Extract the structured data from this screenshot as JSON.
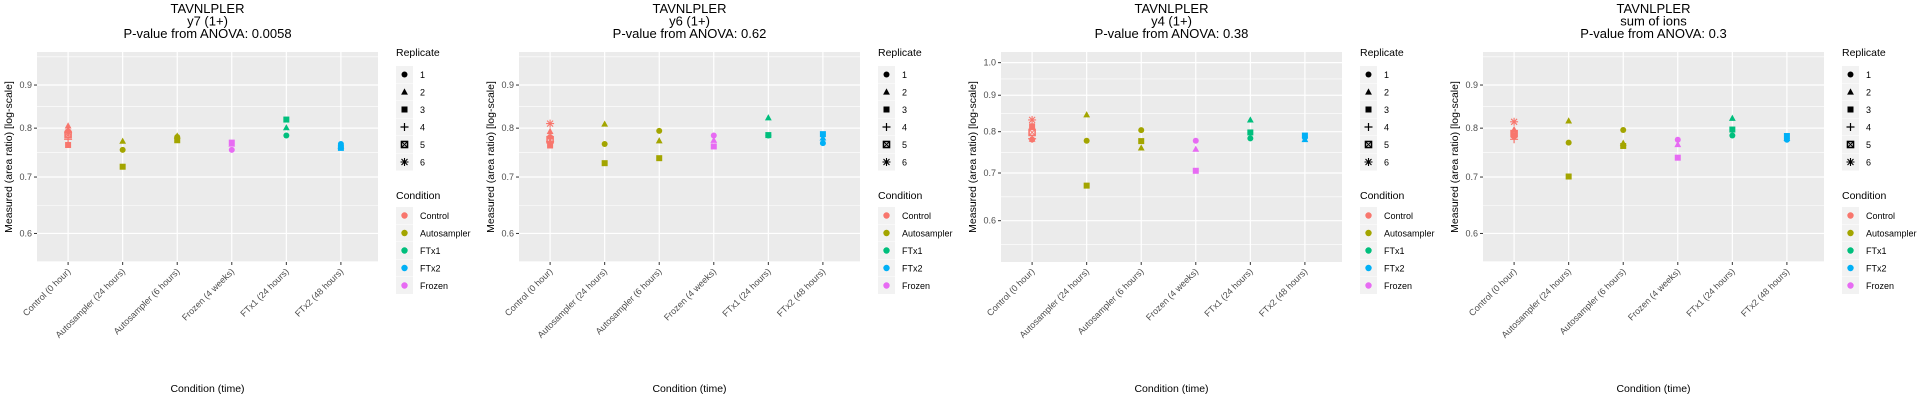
{
  "colors": {
    "Control": "#F8766D",
    "Autosampler": "#A3A500",
    "FTx1": "#00BF7D",
    "FTx2": "#00B0F6",
    "Frozen": "#E76BF3",
    "panel_bg": "#EBEBEB",
    "grid": "#FFFFFF"
  },
  "chart_data": [
    {
      "type": "scatter",
      "title": [
        "TAVNLPLER",
        "y7 (1+)",
        "P-value from ANOVA: 0.0058"
      ],
      "xlabel": "Condition (time)",
      "ylabel": "Measured (area ratio) [log-scale]",
      "yscale": "log",
      "ylim": [
        0.555,
        0.985
      ],
      "yticks": [
        0.6,
        0.7,
        0.8,
        0.9
      ],
      "grid": true,
      "categories": [
        "Control (0 hour)",
        "Autosampler (24 hours)",
        "Autosampler (6 hours)",
        "Frozen (4 weeks)",
        "FTx1 (24 hours)",
        "FTx2 (48 hours)"
      ],
      "points": [
        {
          "cat": 0,
          "cond": "Control",
          "rep": 2,
          "y": 0.805
        },
        {
          "cat": 0,
          "cond": "Control",
          "rep": 1,
          "y": 0.793
        },
        {
          "cat": 0,
          "cond": "Control",
          "rep": 6,
          "y": 0.79
        },
        {
          "cat": 0,
          "cond": "Control",
          "rep": 5,
          "y": 0.786
        },
        {
          "cat": 0,
          "cond": "Control",
          "rep": 4,
          "y": 0.776
        },
        {
          "cat": 0,
          "cond": "Control",
          "rep": 3,
          "y": 0.764
        },
        {
          "cat": 1,
          "cond": "Autosampler",
          "rep": 2,
          "y": 0.772
        },
        {
          "cat": 1,
          "cond": "Autosampler",
          "rep": 1,
          "y": 0.754
        },
        {
          "cat": 1,
          "cond": "Autosampler",
          "rep": 3,
          "y": 0.72
        },
        {
          "cat": 2,
          "cond": "Autosampler",
          "rep": 2,
          "y": 0.783
        },
        {
          "cat": 2,
          "cond": "Autosampler",
          "rep": 1,
          "y": 0.781
        },
        {
          "cat": 2,
          "cond": "Autosampler",
          "rep": 3,
          "y": 0.774
        },
        {
          "cat": 3,
          "cond": "Frozen",
          "rep": 3,
          "y": 0.769
        },
        {
          "cat": 3,
          "cond": "Frozen",
          "rep": 2,
          "y": 0.766
        },
        {
          "cat": 3,
          "cond": "Frozen",
          "rep": 1,
          "y": 0.754
        },
        {
          "cat": 4,
          "cond": "FTx1",
          "rep": 3,
          "y": 0.819
        },
        {
          "cat": 4,
          "cond": "FTx1",
          "rep": 2,
          "y": 0.801
        },
        {
          "cat": 4,
          "cond": "FTx1",
          "rep": 1,
          "y": 0.784
        },
        {
          "cat": 5,
          "cond": "FTx2",
          "rep": 1,
          "y": 0.766
        },
        {
          "cat": 5,
          "cond": "FTx2",
          "rep": 2,
          "y": 0.762
        },
        {
          "cat": 5,
          "cond": "FTx2",
          "rep": 3,
          "y": 0.758
        }
      ]
    },
    {
      "type": "scatter",
      "title": [
        "TAVNLPLER",
        "y6 (1+)",
        "P-value from ANOVA: 0.62"
      ],
      "xlabel": "Condition (time)",
      "ylabel": "Measured (area ratio) [log-scale]",
      "yscale": "log",
      "ylim": [
        0.555,
        0.985
      ],
      "yticks": [
        0.6,
        0.7,
        0.8,
        0.9
      ],
      "grid": true,
      "categories": [
        "Control (0 hour)",
        "Autosampler (24 hours)",
        "Autosampler (6 hours)",
        "Frozen (4 weeks)",
        "FTx1 (24 hours)",
        "FTx2 (48 hours)"
      ],
      "points": [
        {
          "cat": 0,
          "cond": "Control",
          "rep": 6,
          "y": 0.81
        },
        {
          "cat": 0,
          "cond": "Control",
          "rep": 2,
          "y": 0.793
        },
        {
          "cat": 0,
          "cond": "Control",
          "rep": 1,
          "y": 0.781
        },
        {
          "cat": 0,
          "cond": "Control",
          "rep": 5,
          "y": 0.775
        },
        {
          "cat": 0,
          "cond": "Control",
          "rep": 4,
          "y": 0.771
        },
        {
          "cat": 0,
          "cond": "Control",
          "rep": 3,
          "y": 0.763
        },
        {
          "cat": 1,
          "cond": "Autosampler",
          "rep": 2,
          "y": 0.809
        },
        {
          "cat": 1,
          "cond": "Autosampler",
          "rep": 1,
          "y": 0.766
        },
        {
          "cat": 1,
          "cond": "Autosampler",
          "rep": 3,
          "y": 0.727
        },
        {
          "cat": 2,
          "cond": "Autosampler",
          "rep": 1,
          "y": 0.794
        },
        {
          "cat": 2,
          "cond": "Autosampler",
          "rep": 2,
          "y": 0.773
        },
        {
          "cat": 2,
          "cond": "Autosampler",
          "rep": 3,
          "y": 0.737
        },
        {
          "cat": 3,
          "cond": "Frozen",
          "rep": 1,
          "y": 0.784
        },
        {
          "cat": 3,
          "cond": "Frozen",
          "rep": 2,
          "y": 0.774
        },
        {
          "cat": 3,
          "cond": "Frozen",
          "rep": 3,
          "y": 0.761
        },
        {
          "cat": 4,
          "cond": "FTx1",
          "rep": 2,
          "y": 0.823
        },
        {
          "cat": 4,
          "cond": "FTx1",
          "rep": 1,
          "y": 0.784
        },
        {
          "cat": 4,
          "cond": "FTx1",
          "rep": 3,
          "y": 0.785
        },
        {
          "cat": 5,
          "cond": "FTx2",
          "rep": 3,
          "y": 0.787
        },
        {
          "cat": 5,
          "cond": "FTx2",
          "rep": 2,
          "y": 0.779
        },
        {
          "cat": 5,
          "cond": "FTx2",
          "rep": 1,
          "y": 0.768
        }
      ]
    },
    {
      "type": "scatter",
      "title": [
        "TAVNLPLER",
        "y4 (1+)",
        "P-value from ANOVA: 0.38"
      ],
      "xlabel": "Condition (time)",
      "ylabel": "Measured (area ratio) [log-scale]",
      "yscale": "log",
      "ylim": [
        0.525,
        1.035
      ],
      "yticks": [
        0.6,
        0.7,
        0.8,
        0.9,
        1.0
      ],
      "grid": true,
      "categories": [
        "Control (0 hour)",
        "Autosampler (24 hours)",
        "Autosampler (6 hours)",
        "Frozen (4 weeks)",
        "FTx1 (24 hours)",
        "FTx2 (48 hours)"
      ],
      "points": [
        {
          "cat": 0,
          "cond": "Control",
          "rep": 6,
          "y": 0.831
        },
        {
          "cat": 0,
          "cond": "Control",
          "rep": 3,
          "y": 0.814
        },
        {
          "cat": 0,
          "cond": "Control",
          "rep": 5,
          "y": 0.798
        },
        {
          "cat": 0,
          "cond": "Control",
          "rep": 4,
          "y": 0.782
        },
        {
          "cat": 0,
          "cond": "Control",
          "rep": 1,
          "y": 0.78
        },
        {
          "cat": 0,
          "cond": "Control",
          "rep": 2,
          "y": 0.781
        },
        {
          "cat": 1,
          "cond": "Autosampler",
          "rep": 2,
          "y": 0.845
        },
        {
          "cat": 1,
          "cond": "Autosampler",
          "rep": 1,
          "y": 0.777
        },
        {
          "cat": 1,
          "cond": "Autosampler",
          "rep": 3,
          "y": 0.672
        },
        {
          "cat": 2,
          "cond": "Autosampler",
          "rep": 1,
          "y": 0.804
        },
        {
          "cat": 2,
          "cond": "Autosampler",
          "rep": 3,
          "y": 0.776
        },
        {
          "cat": 2,
          "cond": "Autosampler",
          "rep": 2,
          "y": 0.759
        },
        {
          "cat": 3,
          "cond": "Frozen",
          "rep": 1,
          "y": 0.777
        },
        {
          "cat": 3,
          "cond": "Frozen",
          "rep": 2,
          "y": 0.756
        },
        {
          "cat": 3,
          "cond": "Frozen",
          "rep": 3,
          "y": 0.705
        },
        {
          "cat": 4,
          "cond": "FTx1",
          "rep": 2,
          "y": 0.831
        },
        {
          "cat": 4,
          "cond": "FTx1",
          "rep": 3,
          "y": 0.798
        },
        {
          "cat": 4,
          "cond": "FTx1",
          "rep": 1,
          "y": 0.783
        },
        {
          "cat": 5,
          "cond": "FTx2",
          "rep": 3,
          "y": 0.79
        },
        {
          "cat": 5,
          "cond": "FTx2",
          "rep": 1,
          "y": 0.785
        },
        {
          "cat": 5,
          "cond": "FTx2",
          "rep": 2,
          "y": 0.78
        }
      ]
    },
    {
      "type": "scatter",
      "title": [
        "TAVNLPLER",
        "sum of ions",
        "P-value from ANOVA: 0.3"
      ],
      "xlabel": "Condition (time)",
      "ylabel": "Measured (area ratio) [log-scale]",
      "yscale": "log",
      "ylim": [
        0.555,
        0.985
      ],
      "yticks": [
        0.6,
        0.7,
        0.8,
        0.9
      ],
      "grid": true,
      "categories": [
        "Control (0 hour)",
        "Autosampler (24 hours)",
        "Autosampler (6 hours)",
        "Frozen (4 weeks)",
        "FTx1 (24 hours)",
        "FTx2 (48 hours)"
      ],
      "points": [
        {
          "cat": 0,
          "cond": "Control",
          "rep": 6,
          "y": 0.814
        },
        {
          "cat": 0,
          "cond": "Control",
          "rep": 2,
          "y": 0.797
        },
        {
          "cat": 0,
          "cond": "Control",
          "rep": 5,
          "y": 0.788
        },
        {
          "cat": 0,
          "cond": "Control",
          "rep": 3,
          "y": 0.785
        },
        {
          "cat": 0,
          "cond": "Control",
          "rep": 1,
          "y": 0.782
        },
        {
          "cat": 0,
          "cond": "Control",
          "rep": 4,
          "y": 0.776
        },
        {
          "cat": 1,
          "cond": "Autosampler",
          "rep": 2,
          "y": 0.816
        },
        {
          "cat": 1,
          "cond": "Autosampler",
          "rep": 1,
          "y": 0.769
        },
        {
          "cat": 1,
          "cond": "Autosampler",
          "rep": 3,
          "y": 0.701
        },
        {
          "cat": 2,
          "cond": "Autosampler",
          "rep": 1,
          "y": 0.796
        },
        {
          "cat": 2,
          "cond": "Autosampler",
          "rep": 2,
          "y": 0.768
        },
        {
          "cat": 2,
          "cond": "Autosampler",
          "rep": 3,
          "y": 0.762
        },
        {
          "cat": 3,
          "cond": "Frozen",
          "rep": 1,
          "y": 0.775
        },
        {
          "cat": 3,
          "cond": "Frozen",
          "rep": 2,
          "y": 0.765
        },
        {
          "cat": 3,
          "cond": "Frozen",
          "rep": 3,
          "y": 0.738
        },
        {
          "cat": 4,
          "cond": "FTx1",
          "rep": 2,
          "y": 0.822
        },
        {
          "cat": 4,
          "cond": "FTx1",
          "rep": 3,
          "y": 0.797
        },
        {
          "cat": 4,
          "cond": "FTx1",
          "rep": 1,
          "y": 0.784
        },
        {
          "cat": 5,
          "cond": "FTx2",
          "rep": 3,
          "y": 0.783
        },
        {
          "cat": 5,
          "cond": "FTx2",
          "rep": 1,
          "y": 0.775
        },
        {
          "cat": 5,
          "cond": "FTx2",
          "rep": 2,
          "y": 0.778
        }
      ]
    }
  ],
  "legend": {
    "replicate_title": "Replicate",
    "replicates": [
      {
        "label": "1",
        "shape": "circle"
      },
      {
        "label": "2",
        "shape": "triangle"
      },
      {
        "label": "3",
        "shape": "square"
      },
      {
        "label": "4",
        "shape": "plus"
      },
      {
        "label": "5",
        "shape": "square-cross"
      },
      {
        "label": "6",
        "shape": "asterisk"
      }
    ],
    "condition_title": "Condition",
    "conditions": [
      {
        "label": "Control",
        "key": "Control"
      },
      {
        "label": "Autosampler",
        "key": "Autosampler"
      },
      {
        "label": "FTx1",
        "key": "FTx1"
      },
      {
        "label": "FTx2",
        "key": "FTx2"
      },
      {
        "label": "Frozen",
        "key": "Frozen"
      }
    ]
  }
}
